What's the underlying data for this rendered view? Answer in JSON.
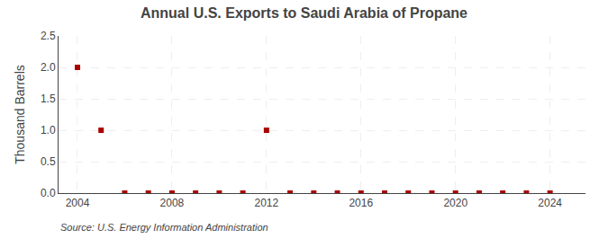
{
  "chart_data": {
    "type": "scatter",
    "title": "Annual U.S. Exports to Saudi Arabia of Propane",
    "ylabel": "Thousand Barrels",
    "annotations": [
      "Source: U.S. Energy Information Administration"
    ],
    "x": [
      2004,
      2005,
      2006,
      2007,
      2008,
      2009,
      2010,
      2011,
      2012,
      2013,
      2014,
      2015,
      2016,
      2017,
      2018,
      2019,
      2020,
      2021,
      2022,
      2023,
      2024
    ],
    "values": [
      2.0,
      1.0,
      0.0,
      0.0,
      0.0,
      0.0,
      0.0,
      0.0,
      1.0,
      0.0,
      0.0,
      0.0,
      0.0,
      0.0,
      0.0,
      0.0,
      0.0,
      0.0,
      0.0,
      0.0,
      0.0
    ],
    "color": "#aa0000",
    "marker": "square",
    "xlim": [
      2003.2,
      2025.5
    ],
    "xticks": [
      2004,
      2008,
      2012,
      2016,
      2020,
      2024
    ],
    "ylim": [
      0.0,
      2.5
    ],
    "yticks": [
      {
        "value": 0.0,
        "label": "0.0"
      },
      0.5,
      {
        "value": 1.0,
        "label": "1.0"
      },
      1.5,
      {
        "value": 2.0,
        "label": "2.0"
      },
      2.5
    ],
    "grid": true
  }
}
